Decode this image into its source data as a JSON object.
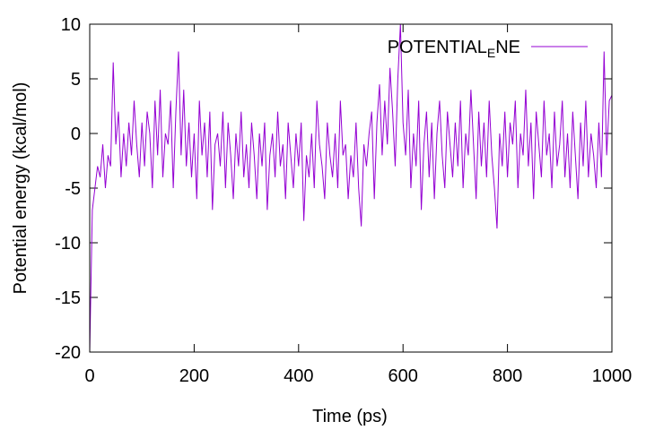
{
  "chart_data": {
    "type": "line",
    "xlabel": "Time (ps)",
    "ylabel": "Potential energy (kcal/mol)",
    "x": [
      0,
      5,
      10,
      15,
      20,
      25,
      30,
      35,
      40,
      45,
      50,
      55,
      60,
      65,
      70,
      75,
      80,
      85,
      90,
      95,
      100,
      105,
      110,
      115,
      120,
      125,
      130,
      135,
      140,
      145,
      150,
      155,
      160,
      165,
      170,
      175,
      180,
      185,
      190,
      195,
      200,
      205,
      210,
      215,
      220,
      225,
      230,
      235,
      240,
      245,
      250,
      255,
      260,
      265,
      270,
      275,
      280,
      285,
      290,
      295,
      300,
      305,
      310,
      315,
      320,
      325,
      330,
      335,
      340,
      345,
      350,
      355,
      360,
      365,
      370,
      375,
      380,
      385,
      390,
      395,
      400,
      405,
      410,
      415,
      420,
      425,
      430,
      435,
      440,
      445,
      450,
      455,
      460,
      465,
      470,
      475,
      480,
      485,
      490,
      495,
      500,
      505,
      510,
      515,
      520,
      525,
      530,
      535,
      540,
      545,
      550,
      555,
      560,
      565,
      570,
      575,
      580,
      585,
      590,
      595,
      600,
      605,
      610,
      615,
      620,
      625,
      630,
      635,
      640,
      645,
      650,
      655,
      660,
      665,
      670,
      675,
      680,
      685,
      690,
      695,
      700,
      705,
      710,
      715,
      720,
      725,
      730,
      735,
      740,
      745,
      750,
      755,
      760,
      765,
      770,
      775,
      780,
      785,
      790,
      795,
      800,
      805,
      810,
      815,
      820,
      825,
      830,
      835,
      840,
      845,
      850,
      855,
      860,
      865,
      870,
      875,
      880,
      885,
      890,
      895,
      900,
      905,
      910,
      915,
      920,
      925,
      930,
      935,
      940,
      945,
      950,
      955,
      960,
      965,
      970,
      975,
      980,
      985,
      990,
      995,
      1000
    ],
    "series": [
      {
        "name": "POTENTIAL",
        "name_subscript": "E",
        "name_suffix": "NE",
        "color": "#9400d3",
        "values": [
          -20,
          -7,
          -5,
          -3,
          -4,
          -1,
          -5,
          -2,
          -3,
          6.5,
          -1,
          2,
          -4,
          0,
          -3,
          1,
          -2,
          3,
          -1,
          -4,
          1,
          -3,
          2,
          0,
          -5,
          3,
          -2,
          4,
          -4,
          0,
          -1,
          3,
          -5,
          2,
          7.5,
          -2,
          4,
          -3,
          1,
          -4,
          0,
          -6,
          3,
          -2,
          1,
          -4,
          2,
          -7,
          -1,
          0,
          -3,
          2,
          -5,
          1,
          -2,
          -6,
          0,
          -3,
          2,
          -4,
          -1,
          -5,
          1,
          -2,
          -6,
          0,
          -3,
          1,
          -7,
          -2,
          0,
          -4,
          2,
          -3,
          -1,
          -6,
          1,
          -2,
          -5,
          0,
          -3,
          1,
          -8,
          -2,
          -4,
          0,
          -5,
          3,
          -1,
          -3,
          -6,
          1,
          -2,
          -4,
          0,
          -5,
          3,
          -2,
          -1,
          -6,
          -2,
          -4,
          1,
          -5,
          -8.5,
          -1,
          -3,
          0,
          2,
          -6,
          1,
          4.5,
          -2,
          3,
          -1,
          6,
          2,
          -3,
          5,
          10,
          1,
          -2,
          4,
          -5,
          0,
          -3,
          3,
          -7,
          -1,
          2,
          -4,
          1,
          -6,
          0,
          3,
          -2,
          -5,
          2,
          -1,
          -4,
          1,
          -3,
          3,
          -5,
          0,
          -2,
          4,
          -1,
          -6,
          2,
          -3,
          1,
          -4,
          3,
          -2,
          -5,
          -8.7,
          0,
          -3,
          2,
          -4,
          1,
          -1,
          3,
          -5,
          0,
          -2,
          4,
          -3,
          1,
          -6,
          2,
          -1,
          -4,
          3,
          -2,
          0,
          -5,
          2,
          -3,
          -1,
          3,
          -4,
          0,
          -5,
          2,
          -2,
          -6,
          1,
          -3,
          3,
          -4,
          0,
          -2,
          -5,
          1,
          -4,
          7.5,
          -2,
          3,
          3.5
        ]
      }
    ],
    "xlim": [
      0,
      1000
    ],
    "xticks": [
      0,
      200,
      400,
      600,
      800,
      1000
    ],
    "ylim": [
      -20,
      10
    ],
    "yticks": [
      -20,
      -15,
      -10,
      -5,
      0,
      5,
      10
    ],
    "legend": "upper right",
    "grid": false
  }
}
